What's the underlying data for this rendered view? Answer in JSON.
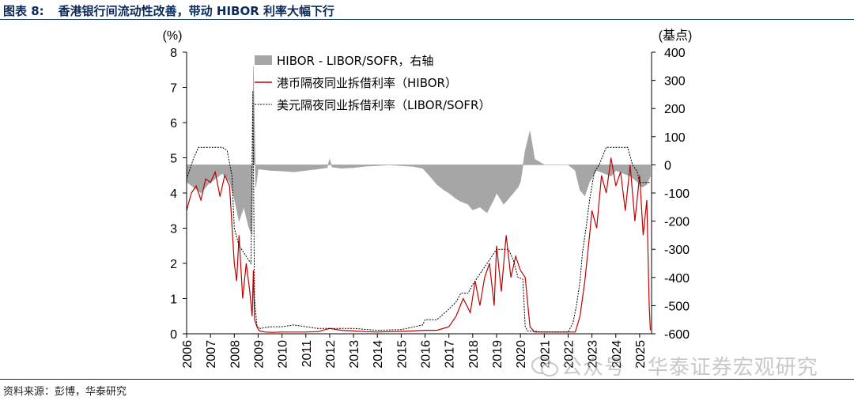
{
  "figure": {
    "number": "图表 8:",
    "title": "香港银行间流动性改善，带动 HIBOR 利率大幅下行",
    "source": "资料来源：彭博，华泰研究",
    "watermark": "公众号 · 华泰证券宏观研究"
  },
  "chart_data": {
    "type": "line",
    "title": "香港银行间流动性改善，带动 HIBOR 利率大幅下行",
    "y_left_unit": "(%)",
    "y_right_unit": "(基点)",
    "ylim_left": [
      0,
      8
    ],
    "ylim_right": [
      -600,
      400
    ],
    "y_left_ticks": [
      "0",
      "1",
      "2",
      "3",
      "4",
      "5",
      "6",
      "7",
      "8"
    ],
    "y_right_ticks": [
      "-600",
      "-500",
      "-400",
      "-300",
      "-200",
      "-100",
      "0",
      "100",
      "200",
      "300",
      "400"
    ],
    "x_ticks": [
      "2006",
      "2007",
      "2008",
      "2009",
      "2010",
      "2011",
      "2012",
      "2013",
      "2014",
      "2015",
      "2016",
      "2017",
      "2018",
      "2019",
      "2020",
      "2021",
      "2022",
      "2023",
      "2024",
      "2025"
    ],
    "xlim": [
      2006.0,
      2025.5
    ],
    "legend": [
      "HIBOR - LIBOR/SOFR，右轴",
      "港币隔夜同业拆借利率（HIBOR）",
      "美元隔夜同业拆借利率（LIBOR/SOFR）"
    ],
    "legend_position": "top-center",
    "series": [
      {
        "name": "HIBOR - LIBOR/SOFR，右轴",
        "kind": "area",
        "axis": "right",
        "color": "#a6a6a6",
        "x": [
          2006.0,
          2006.3,
          2006.6,
          2006.9,
          2007.2,
          2007.5,
          2007.8,
          2008.0,
          2008.2,
          2008.4,
          2008.6,
          2008.75,
          2008.8,
          2008.9,
          2009.0,
          2009.5,
          2010.0,
          2010.5,
          2011.0,
          2011.5,
          2011.9,
          2012.0,
          2012.1,
          2012.5,
          2013.0,
          2013.5,
          2014.0,
          2014.5,
          2015.0,
          2015.5,
          2015.9,
          2016.2,
          2016.5,
          2016.8,
          2017.0,
          2017.3,
          2017.5,
          2017.8,
          2018.0,
          2018.3,
          2018.6,
          2018.9,
          2019.0,
          2019.3,
          2019.6,
          2019.9,
          2020.0,
          2020.2,
          2020.4,
          2020.6,
          2021.0,
          2021.5,
          2022.0,
          2022.3,
          2022.5,
          2022.7,
          2022.9,
          2023.2,
          2023.5,
          2023.8,
          2024.0,
          2024.3,
          2024.6,
          2024.9,
          2025.1,
          2025.3,
          2025.45
        ],
        "values": [
          -60,
          -80,
          -100,
          -70,
          -50,
          -30,
          -60,
          -120,
          -200,
          -150,
          -220,
          -250,
          350,
          -80,
          -15,
          -20,
          -22,
          -25,
          -20,
          -15,
          -10,
          20,
          -8,
          -12,
          -10,
          -5,
          -3,
          0,
          -3,
          -6,
          -12,
          -40,
          -70,
          -90,
          -100,
          -120,
          -130,
          -140,
          -160,
          -150,
          -170,
          -120,
          -100,
          -140,
          -110,
          -80,
          -60,
          50,
          120,
          20,
          0,
          0,
          0,
          -20,
          -90,
          -110,
          -60,
          -20,
          -30,
          -40,
          -20,
          -30,
          -40,
          -60,
          -80,
          -70,
          -40
        ]
      },
      {
        "name": "港币隔夜同业拆借利率（HIBOR）",
        "kind": "line",
        "axis": "left",
        "color": "#c00000",
        "x": [
          2006.0,
          2006.2,
          2006.4,
          2006.6,
          2006.8,
          2007.0,
          2007.2,
          2007.4,
          2007.6,
          2007.8,
          2008.0,
          2008.1,
          2008.2,
          2008.35,
          2008.5,
          2008.65,
          2008.75,
          2008.8,
          2008.85,
          2008.95,
          2009.05,
          2009.3,
          2009.6,
          2010.0,
          2010.5,
          2011.0,
          2011.5,
          2012.0,
          2012.5,
          2013.0,
          2013.5,
          2014.0,
          2014.5,
          2015.0,
          2015.5,
          2016.0,
          2016.5,
          2017.0,
          2017.3,
          2017.6,
          2017.9,
          2018.1,
          2018.3,
          2018.5,
          2018.7,
          2018.9,
          2019.0,
          2019.2,
          2019.4,
          2019.6,
          2019.8,
          2020.0,
          2020.2,
          2020.4,
          2020.6,
          2021.0,
          2021.5,
          2022.0,
          2022.3,
          2022.5,
          2022.7,
          2022.9,
          2023.0,
          2023.2,
          2023.4,
          2023.6,
          2023.8,
          2024.0,
          2024.2,
          2024.4,
          2024.6,
          2024.8,
          2025.0,
          2025.15,
          2025.3,
          2025.4,
          2025.45
        ],
        "values": [
          3.5,
          4.0,
          4.2,
          3.8,
          4.4,
          4.3,
          4.6,
          3.9,
          4.5,
          4.2,
          2.0,
          1.5,
          2.8,
          1.0,
          2.0,
          1.2,
          0.5,
          1.8,
          0.4,
          0.2,
          0.08,
          0.05,
          0.04,
          0.05,
          0.05,
          0.05,
          0.06,
          0.15,
          0.1,
          0.08,
          0.06,
          0.05,
          0.06,
          0.07,
          0.08,
          0.1,
          0.1,
          0.2,
          0.5,
          1.0,
          0.6,
          1.5,
          0.8,
          1.6,
          2.0,
          0.8,
          2.5,
          1.2,
          2.8,
          1.6,
          2.2,
          1.8,
          1.6,
          0.2,
          0.05,
          0.05,
          0.05,
          0.05,
          0.05,
          0.5,
          1.5,
          2.8,
          3.5,
          3.0,
          4.5,
          4.0,
          5.0,
          4.2,
          4.6,
          3.5,
          4.8,
          3.2,
          4.5,
          2.8,
          3.8,
          0.8,
          0.1
        ]
      },
      {
        "name": "美元隔夜同业拆借利率（LIBOR/SOFR）",
        "kind": "line",
        "dashed": true,
        "axis": "left",
        "color": "#000000",
        "x": [
          2006.0,
          2006.3,
          2006.5,
          2007.0,
          2007.5,
          2007.7,
          2007.9,
          2008.0,
          2008.2,
          2008.4,
          2008.6,
          2008.7,
          2008.78,
          2008.85,
          2008.95,
          2009.1,
          2009.5,
          2010.0,
          2010.5,
          2011.0,
          2011.5,
          2012.0,
          2013.0,
          2014.0,
          2015.0,
          2015.9,
          2016.0,
          2016.5,
          2017.0,
          2017.3,
          2017.5,
          2017.8,
          2018.0,
          2018.3,
          2018.5,
          2018.8,
          2019.0,
          2019.5,
          2019.7,
          2019.9,
          2020.1,
          2020.2,
          2020.3,
          2021.0,
          2022.0,
          2022.2,
          2022.35,
          2022.5,
          2022.6,
          2022.75,
          2022.9,
          2023.1,
          2023.3,
          2023.6,
          2024.0,
          2024.5,
          2024.7,
          2024.9,
          2025.0,
          2025.45
        ],
        "values": [
          4.4,
          5.0,
          5.3,
          5.3,
          5.3,
          5.2,
          4.5,
          3.0,
          2.5,
          2.3,
          2.1,
          2.0,
          6.9,
          1.0,
          0.2,
          0.15,
          0.2,
          0.2,
          0.25,
          0.2,
          0.15,
          0.15,
          0.15,
          0.1,
          0.12,
          0.25,
          0.4,
          0.4,
          0.7,
          0.9,
          1.15,
          1.15,
          1.4,
          1.7,
          1.9,
          2.2,
          2.4,
          2.4,
          2.1,
          1.6,
          1.55,
          0.2,
          0.08,
          0.05,
          0.05,
          0.3,
          0.8,
          1.5,
          2.3,
          3.0,
          3.8,
          4.6,
          4.8,
          5.3,
          5.3,
          5.3,
          4.8,
          4.6,
          4.3,
          4.3
        ]
      }
    ],
    "grid": false
  }
}
